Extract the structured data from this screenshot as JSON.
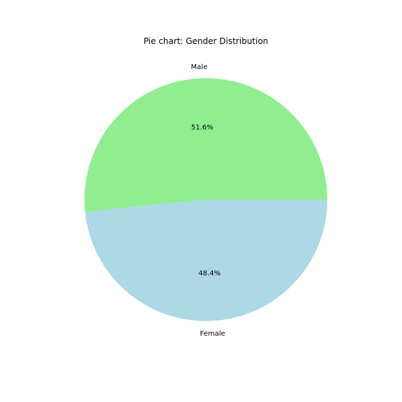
{
  "chart_data": {
    "type": "pie",
    "title": "Pie chart: Gender Distribution",
    "slices": [
      {
        "label": "Male",
        "value": 51.6,
        "pct_label": "51.6%",
        "color": "#90ee90"
      },
      {
        "label": "Female",
        "value": 48.4,
        "pct_label": "48.4%",
        "color": "#add8e6"
      }
    ],
    "start_angle_deg": 0,
    "direction": "counterclockwise"
  }
}
